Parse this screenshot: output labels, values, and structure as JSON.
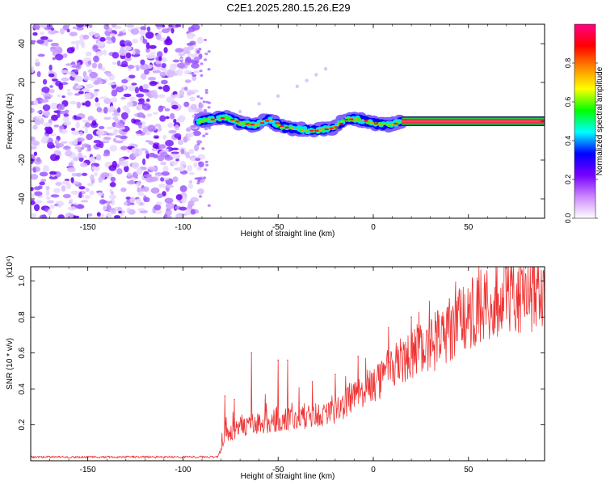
{
  "title": "C2E1.2025.280.15.26.E29",
  "chart_data": [
    {
      "type": "heatmap",
      "xlabel": "Height of straight line (km)",
      "ylabel": "Frequency (Hz)",
      "xlim": [
        -180,
        90
      ],
      "ylim": [
        -50,
        50
      ],
      "xticks": [
        "-150",
        "-100",
        "-50",
        "0",
        "50"
      ],
      "yticks": [
        "-40",
        "-20",
        "0",
        "20",
        "40"
      ],
      "noise_region_x": [
        -180,
        -90
      ],
      "signal_trace": [
        {
          "x": -92,
          "y": 0
        },
        {
          "x": -85,
          "y": 1
        },
        {
          "x": -78,
          "y": 2
        },
        {
          "x": -70,
          "y": -1
        },
        {
          "x": -62,
          "y": -2
        },
        {
          "x": -55,
          "y": 1
        },
        {
          "x": -48,
          "y": -3
        },
        {
          "x": -40,
          "y": -4
        },
        {
          "x": -32,
          "y": -5
        },
        {
          "x": -25,
          "y": -4
        },
        {
          "x": -20,
          "y": -3
        },
        {
          "x": -15,
          "y": 1
        },
        {
          "x": -8,
          "y": 1
        },
        {
          "x": 0,
          "y": -1
        },
        {
          "x": 8,
          "y": -2
        },
        {
          "x": 15,
          "y": 0
        },
        {
          "x": 90,
          "y": 0
        }
      ],
      "faint_arc": [
        {
          "x": -70,
          "y": 5
        },
        {
          "x": -60,
          "y": 9
        },
        {
          "x": -50,
          "y": 13
        },
        {
          "x": -40,
          "y": 18
        },
        {
          "x": -35,
          "y": 21
        },
        {
          "x": -30,
          "y": 24
        },
        {
          "x": -25,
          "y": 27
        }
      ],
      "colorbar": {
        "label": "Normalized spectral amplitude",
        "range": [
          0,
          1
        ],
        "ticks": [
          "0.0",
          "0.2",
          "0.4",
          "0.6",
          "0.8"
        ],
        "colors": [
          "#ffffff",
          "#cc88ff",
          "#7700ff",
          "#0000ff",
          "#00ffff",
          "#00ff00",
          "#ffff00",
          "#ff8800",
          "#ff0000",
          "#ff0088"
        ]
      }
    },
    {
      "type": "line",
      "xlabel": "Height of straight line (km)",
      "ylabel": "SNR (10 * v/v)",
      "multiplier_label": "(x10⁴)",
      "xlim": [
        -180,
        90
      ],
      "ylim": [
        0,
        1.08
      ],
      "xticks": [
        "-150",
        "-100",
        "-50",
        "0",
        "50"
      ],
      "yticks": [
        "0.2",
        "0.4",
        "0.6",
        "0.8",
        "1.0"
      ],
      "color": "#ee3333",
      "envelope": [
        {
          "x": -180,
          "y": 0.02
        },
        {
          "x": -100,
          "y": 0.02
        },
        {
          "x": -82,
          "y": 0.02
        },
        {
          "x": -78,
          "y": 0.15
        },
        {
          "x": -70,
          "y": 0.2
        },
        {
          "x": -60,
          "y": 0.22
        },
        {
          "x": -50,
          "y": 0.24
        },
        {
          "x": -40,
          "y": 0.25
        },
        {
          "x": -30,
          "y": 0.27
        },
        {
          "x": -20,
          "y": 0.3
        },
        {
          "x": -10,
          "y": 0.38
        },
        {
          "x": 0,
          "y": 0.46
        },
        {
          "x": 10,
          "y": 0.54
        },
        {
          "x": 20,
          "y": 0.62
        },
        {
          "x": 30,
          "y": 0.68
        },
        {
          "x": 40,
          "y": 0.76
        },
        {
          "x": 50,
          "y": 0.85
        },
        {
          "x": 60,
          "y": 0.94
        },
        {
          "x": 70,
          "y": 0.98
        },
        {
          "x": 80,
          "y": 1.0
        },
        {
          "x": 90,
          "y": 0.99
        }
      ],
      "spikes": [
        {
          "x": -78,
          "y": 0.36
        },
        {
          "x": -73,
          "y": 0.34
        },
        {
          "x": -64,
          "y": 0.6
        },
        {
          "x": -50,
          "y": 0.56
        },
        {
          "x": -45,
          "y": 0.56
        },
        {
          "x": -32,
          "y": 0.44
        },
        {
          "x": -20,
          "y": 0.48
        },
        {
          "x": -8,
          "y": 0.58
        },
        {
          "x": 8,
          "y": 0.74
        },
        {
          "x": 20,
          "y": 0.8
        },
        {
          "x": 40,
          "y": 0.9
        },
        {
          "x": 55,
          "y": 1.0
        },
        {
          "x": 80,
          "y": 1.04
        }
      ]
    }
  ]
}
